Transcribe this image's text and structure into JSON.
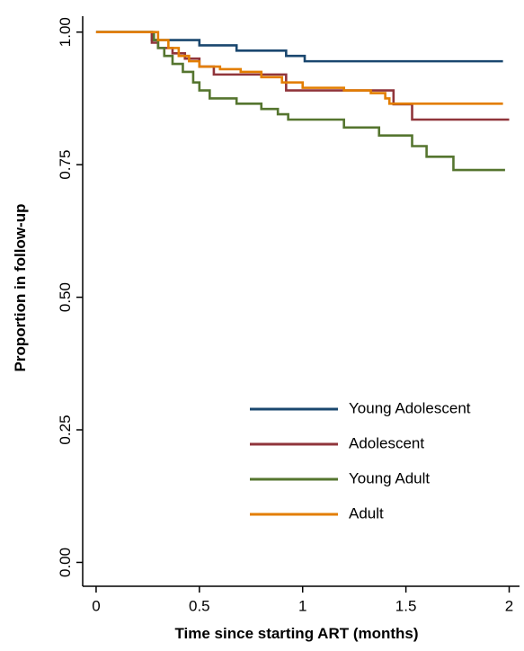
{
  "chart_data": {
    "type": "step",
    "step": "post",
    "x_label": "Time since starting ART (months)",
    "y_label": "Proportion in follow-up",
    "xlim": [
      -0.065,
      2.05
    ],
    "ylim": [
      -0.045,
      1.03
    ],
    "xticks": [
      0,
      0.5,
      1,
      1.5,
      2
    ],
    "yticks": [
      {
        "value": 0,
        "label": "0.00"
      },
      {
        "value": 0.25,
        "label": "0.25"
      },
      {
        "value": 0.5,
        "label": "0.50"
      },
      {
        "value": 0.75,
        "label": "0.75"
      },
      {
        "value": 1,
        "label": "1.00"
      }
    ],
    "legend": "bottom-right",
    "series": [
      {
        "name": "Young Adolescent",
        "color": "#1a476f",
        "x": [
          0,
          0.27,
          0.5,
          0.68,
          0.92,
          1.01,
          1.97
        ],
        "values": [
          1,
          0.985,
          0.975,
          0.965,
          0.955,
          0.945,
          0.945
        ]
      },
      {
        "name": "Adolescent",
        "color": "#90353b",
        "x": [
          0,
          0.27,
          0.3,
          0.37,
          0.43,
          0.5,
          0.57,
          0.92,
          1.44,
          1.53,
          2.0
        ],
        "values": [
          1,
          0.98,
          0.97,
          0.96,
          0.95,
          0.935,
          0.92,
          0.89,
          0.864,
          0.835,
          0.835
        ]
      },
      {
        "name": "Young Adult",
        "color": "#55752f",
        "x": [
          0,
          0.28,
          0.3,
          0.33,
          0.37,
          0.42,
          0.47,
          0.5,
          0.55,
          0.68,
          0.8,
          0.88,
          0.93,
          1.2,
          1.37,
          1.53,
          1.6,
          1.73,
          1.98
        ],
        "values": [
          1,
          0.985,
          0.97,
          0.955,
          0.94,
          0.925,
          0.905,
          0.89,
          0.875,
          0.865,
          0.855,
          0.845,
          0.835,
          0.82,
          0.805,
          0.785,
          0.765,
          0.74,
          0.74
        ]
      },
      {
        "name": "Adult",
        "color": "#e37e00",
        "x": [
          0,
          0.3,
          0.35,
          0.4,
          0.45,
          0.5,
          0.6,
          0.7,
          0.8,
          0.9,
          1.0,
          1.2,
          1.33,
          1.4,
          1.42,
          1.97
        ],
        "values": [
          1,
          0.985,
          0.97,
          0.955,
          0.945,
          0.935,
          0.93,
          0.925,
          0.915,
          0.905,
          0.895,
          0.89,
          0.885,
          0.875,
          0.865,
          0.865
        ]
      }
    ]
  }
}
